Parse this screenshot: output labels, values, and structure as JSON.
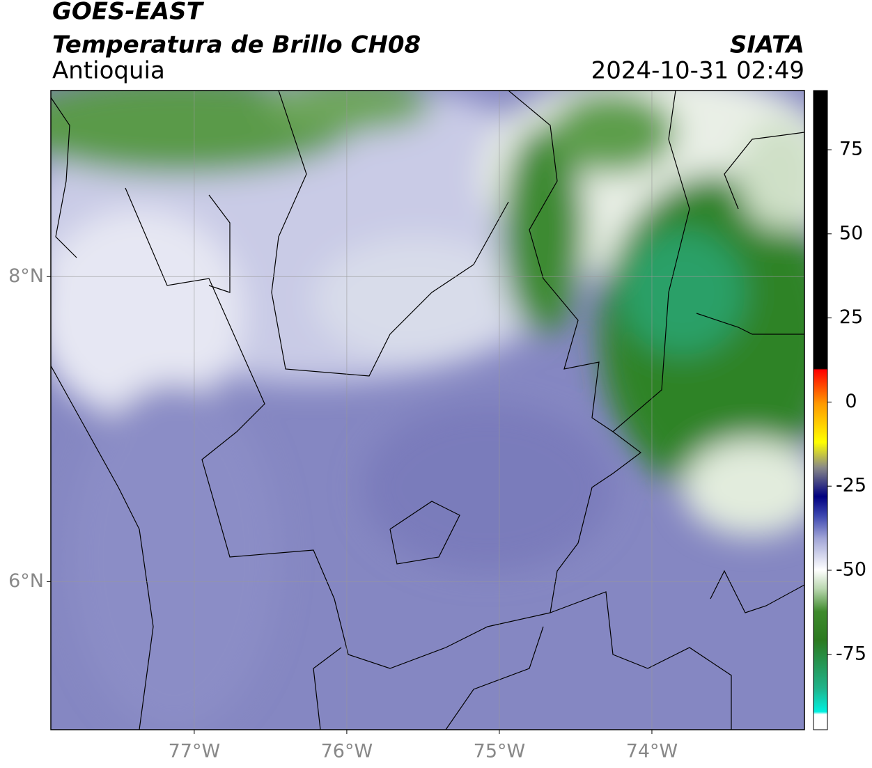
{
  "header": {
    "title": "GOES-EAST",
    "subtitle": "Temperatura de Brillo CH08",
    "region": "Antioquia",
    "source": "SIATA",
    "datetime": "2024-10-31 02:49"
  },
  "map": {
    "xlim": [
      -77.94,
      -73.0
    ],
    "ylim": [
      5.03,
      9.22
    ],
    "xticks": [
      {
        "value": -77,
        "label": "77°W"
      },
      {
        "value": -76,
        "label": "76°W"
      },
      {
        "value": -75,
        "label": "75°W"
      },
      {
        "value": -74,
        "label": "74°W"
      }
    ],
    "yticks": [
      {
        "value": 6,
        "label": "6°N"
      },
      {
        "value": 8,
        "label": "8°N"
      }
    ],
    "grid": true
  },
  "colorbar": {
    "lim": [
      -97.4,
      92.6
    ],
    "ticks": [
      -75,
      -50,
      -25,
      0,
      25,
      50,
      75
    ]
  }
}
